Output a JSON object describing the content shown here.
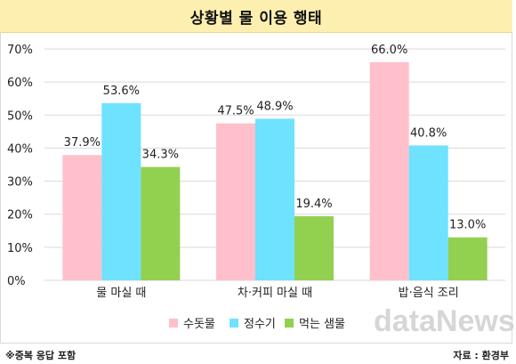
{
  "title": "상황별 물 이용 행태",
  "footnote": "※중복 응답 포함",
  "source": "자료 : 환경부",
  "watermark": "dataNews",
  "colors": {
    "series1": "#ffc0cb",
    "series2": "#6ee2ff",
    "series3": "#92d050",
    "grid": "#d9d9d9",
    "title_bg": "#fcefb0"
  },
  "chart_data": {
    "type": "bar",
    "categories": [
      "물 마실 때",
      "차·커피 마실 때",
      "밥·음식 조리"
    ],
    "series": [
      {
        "name": "수돗물",
        "values": [
          37.9,
          47.5,
          66.0
        ],
        "labels": [
          "37.9%",
          "47.5%",
          "66.0%"
        ]
      },
      {
        "name": "정수기",
        "values": [
          53.6,
          48.9,
          40.8
        ],
        "labels": [
          "53.6%",
          "48.9%",
          "40.8%"
        ]
      },
      {
        "name": "먹는 샘물",
        "values": [
          34.3,
          19.4,
          13.0
        ],
        "labels": [
          "34.3%",
          "19.4%",
          "13.0%"
        ]
      }
    ],
    "yticks": [
      "0%",
      "10%",
      "20%",
      "30%",
      "40%",
      "50%",
      "60%",
      "70%"
    ],
    "ylim": [
      0,
      70
    ],
    "grid": true,
    "legend_position": "bottom"
  }
}
